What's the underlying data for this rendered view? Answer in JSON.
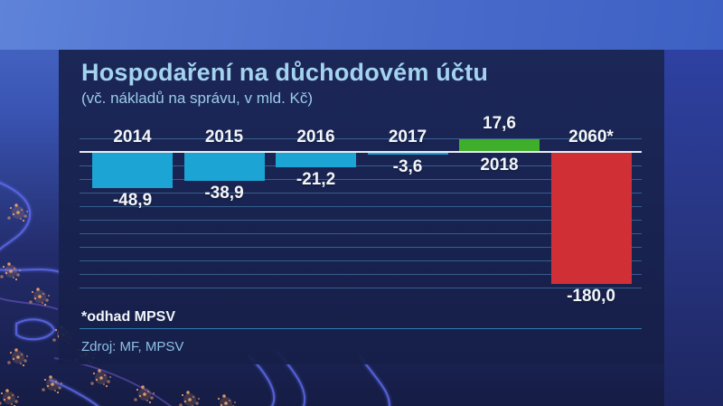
{
  "chart_data": {
    "type": "bar",
    "title": "Hospodaření na důchodovém účtu",
    "subtitle": "(vč. nákladů na správu, v mld. Kč)",
    "unit": "mld. Kč",
    "categories": [
      "2014",
      "2015",
      "2016",
      "2017",
      "2018",
      "2060*"
    ],
    "values": [
      -48.9,
      -38.9,
      -21.2,
      -3.6,
      17.6,
      -180.0
    ],
    "value_labels": [
      "-48,9",
      "-38,9",
      "-21,2",
      "-3,6",
      "17,6",
      "-180,0"
    ],
    "bar_colors": [
      "#1ca4d5",
      "#1ca4d5",
      "#1ca4d5",
      "#1ca4d5",
      "#3faf2b",
      "#d02f36"
    ],
    "ylim": [
      -190,
      25
    ],
    "grid": true,
    "legend": "none"
  },
  "footer": {
    "note": "*odhad MPSV",
    "source": "Zdroj: MF, MPSV"
  },
  "colors": {
    "bar_blue": "#1ca4d5",
    "bar_green": "#3faf2b",
    "bar_red": "#d02f36",
    "panel_bg": "#1b2657",
    "title_text": "#a3d3ee",
    "baseline": "#e8edf4",
    "gridline": "#508fc0"
  }
}
